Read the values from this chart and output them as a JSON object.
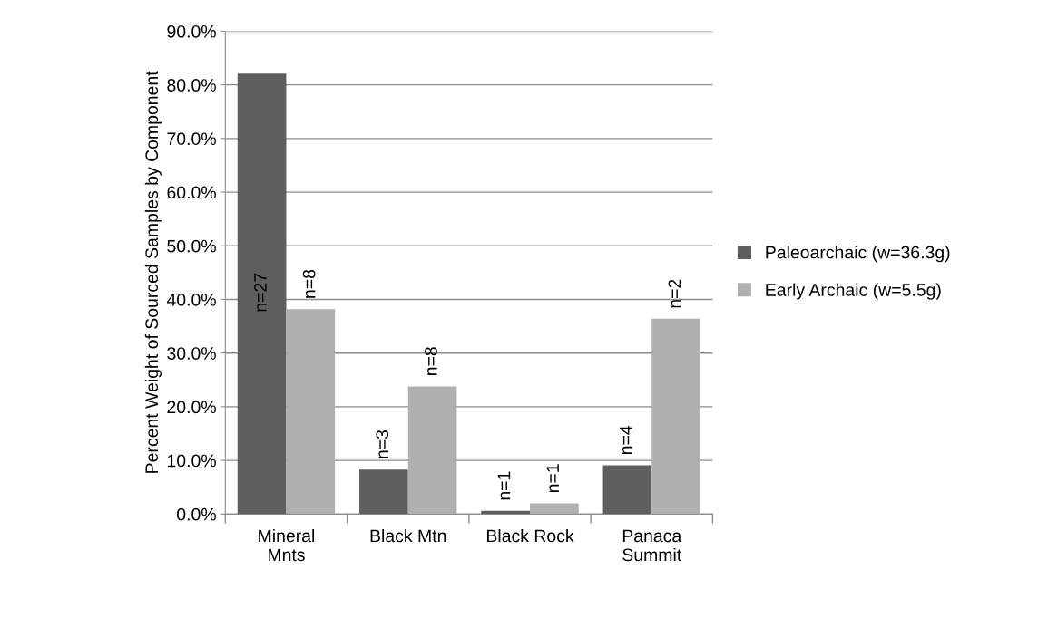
{
  "chart_data": {
    "type": "bar",
    "ylabel": "Percent Weight of Sourced Samples by Component",
    "categories": [
      "Mineral\nMnts",
      "Black Mtn",
      "Black Rock",
      "Panaca\nSummit"
    ],
    "series": [
      {
        "name": "Paleoarchaic (w=36.3g)",
        "color": "#5f5f5f",
        "values": [
          82.1,
          8.3,
          0.6,
          9.1
        ]
      },
      {
        "name": "Early Archaic (w=5.5g)",
        "color": "#b0b0b0",
        "values": [
          38.2,
          23.8,
          2.0,
          36.4
        ]
      }
    ],
    "annotations": [
      {
        "text": "n=27",
        "x": "Mineral\nMnts",
        "y": 41.3
      },
      {
        "text": "n=8",
        "x": "Mineral\nMnts",
        "y": 38.2
      },
      {
        "text": "n=3",
        "x": "Black Mtn",
        "y": 8.3
      },
      {
        "text": "n=8",
        "x": "Black Mtn",
        "y": 23.8
      },
      {
        "text": "n=1",
        "x": "Black Rock",
        "y": 0.6
      },
      {
        "text": "n=1",
        "x": "Black Rock",
        "y": 2.0
      },
      {
        "text": "n=4",
        "x": "Panaca\nSummit",
        "y": 9.1
      },
      {
        "text": "n=2",
        "x": "Panaca\nSummit",
        "y": 36.4
      }
    ],
    "ylim": [
      0,
      90
    ],
    "yticks": [
      {
        "value": 0,
        "label": "0.0%"
      },
      {
        "value": 10,
        "label": "10.0%"
      },
      {
        "value": 20,
        "label": "20.0%"
      },
      {
        "value": 30,
        "label": "30.0%"
      },
      {
        "value": 40,
        "label": "40.0%"
      },
      {
        "value": 50,
        "label": "50.0%"
      },
      {
        "value": 60,
        "label": "60.0%"
      },
      {
        "value": 70,
        "label": "70.0%"
      },
      {
        "value": 80,
        "label": "80.0%"
      },
      {
        "value": 90,
        "label": "90.0%"
      }
    ],
    "grid": "y",
    "legend": "right"
  }
}
